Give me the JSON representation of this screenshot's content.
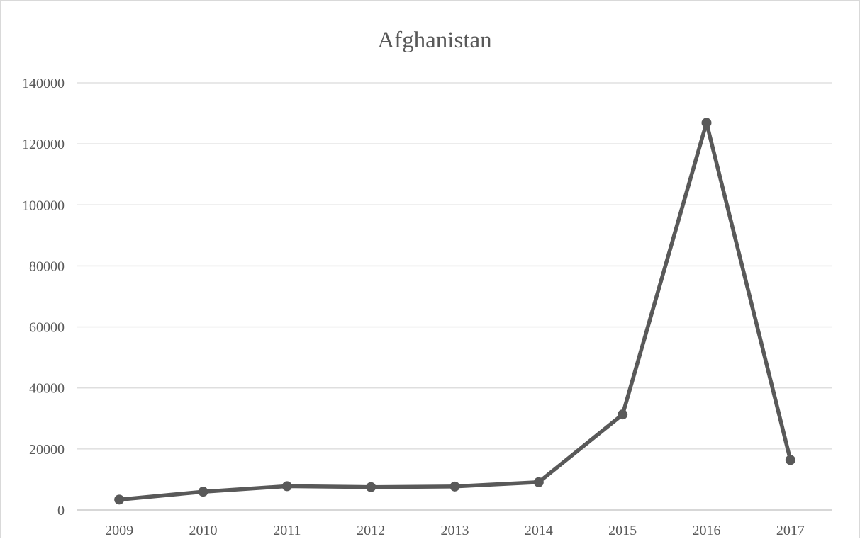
{
  "chart_data": {
    "type": "line",
    "title": "Afghanistan",
    "xlabel": "",
    "ylabel": "",
    "categories": [
      "2009",
      "2010",
      "2011",
      "2012",
      "2013",
      "2014",
      "2015",
      "2016",
      "2017"
    ],
    "series": [
      {
        "values": [
          3400,
          6000,
          7800,
          7500,
          7700,
          9100,
          31300,
          126900,
          16400
        ]
      }
    ],
    "ylim": [
      0,
      140000
    ],
    "yticks": [
      0,
      20000,
      40000,
      60000,
      80000,
      100000,
      120000,
      140000
    ],
    "ytick_labels": [
      "0",
      "20000",
      "40000",
      "60000",
      "80000",
      "100000",
      "120000",
      "140000"
    ],
    "grid": true,
    "legend": "none",
    "colors": {
      "line": "#595959",
      "grid": "#d9d9d9",
      "text": "#595959"
    }
  }
}
